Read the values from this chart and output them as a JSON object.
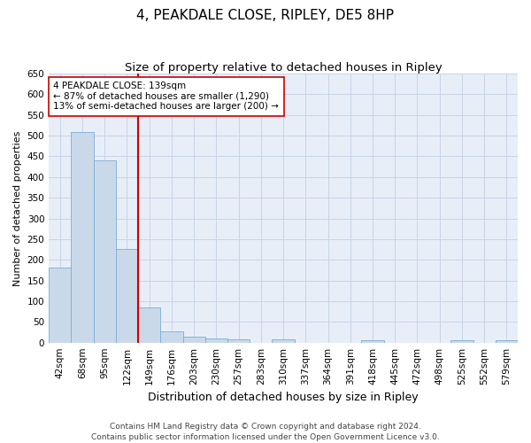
{
  "title": "4, PEAKDALE CLOSE, RIPLEY, DE5 8HP",
  "subtitle": "Size of property relative to detached houses in Ripley",
  "xlabel": "Distribution of detached houses by size in Ripley",
  "ylabel": "Number of detached properties",
  "categories": [
    "42sqm",
    "68sqm",
    "95sqm",
    "122sqm",
    "149sqm",
    "176sqm",
    "203sqm",
    "230sqm",
    "257sqm",
    "283sqm",
    "310sqm",
    "337sqm",
    "364sqm",
    "391sqm",
    "418sqm",
    "445sqm",
    "472sqm",
    "498sqm",
    "525sqm",
    "552sqm",
    "579sqm"
  ],
  "values": [
    182,
    508,
    440,
    226,
    84,
    27,
    14,
    9,
    7,
    0,
    8,
    0,
    0,
    0,
    6,
    0,
    0,
    0,
    6,
    0,
    6
  ],
  "bar_color": "#cad9ea",
  "bar_edge_color": "#7aadd4",
  "vline_color": "#cc0000",
  "annotation_text": "4 PEAKDALE CLOSE: 139sqm\n← 87% of detached houses are smaller (1,290)\n13% of semi-detached houses are larger (200) →",
  "annotation_box_facecolor": "#ffffff",
  "annotation_box_edgecolor": "#cc0000",
  "ylim": [
    0,
    650
  ],
  "yticks": [
    0,
    50,
    100,
    150,
    200,
    250,
    300,
    350,
    400,
    450,
    500,
    550,
    600,
    650
  ],
  "grid_color": "#c8d4e8",
  "background_color": "#e8eef8",
  "footer_line1": "Contains HM Land Registry data © Crown copyright and database right 2024.",
  "footer_line2": "Contains public sector information licensed under the Open Government Licence v3.0.",
  "title_fontsize": 11,
  "subtitle_fontsize": 9.5,
  "xlabel_fontsize": 9,
  "ylabel_fontsize": 8,
  "tick_fontsize": 7.5,
  "annotation_fontsize": 7.5,
  "footer_fontsize": 6.5
}
